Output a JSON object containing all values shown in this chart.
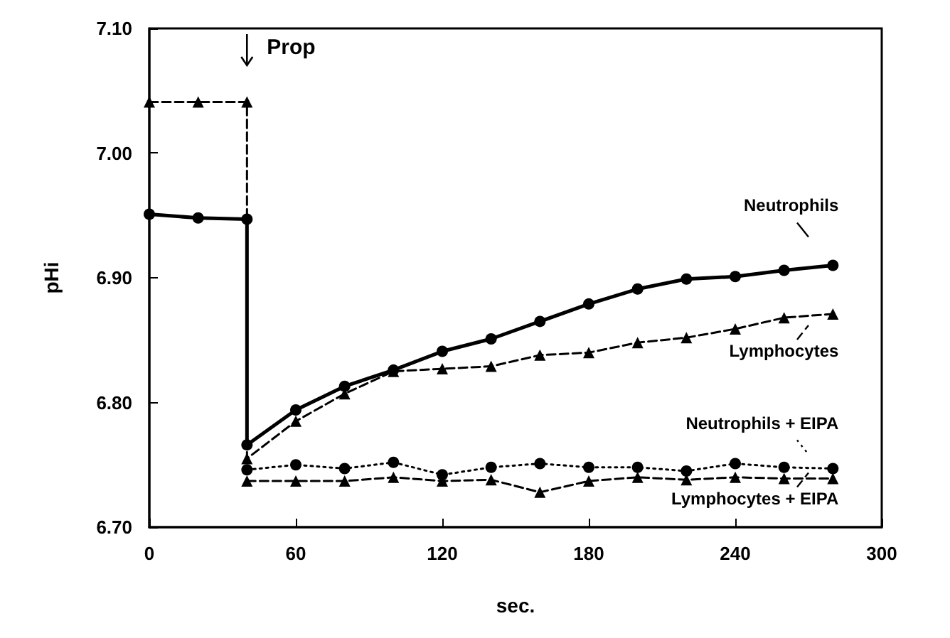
{
  "chart_data": {
    "type": "line",
    "xlabel": "sec.",
    "ylabel": "pHi",
    "xlim": [
      0,
      300
    ],
    "xticks": [
      0,
      60,
      120,
      180,
      240,
      300
    ],
    "ylim": [
      6.7,
      7.1
    ],
    "yticks": [
      {
        "value": 6.7,
        "label": "6.70"
      },
      {
        "value": 6.8,
        "label": "6.80"
      },
      {
        "value": 6.9,
        "label": "6.90"
      },
      {
        "value": 7.0,
        "label": "7.00"
      },
      {
        "value": 7.1,
        "label": "7.10"
      }
    ],
    "grid": false,
    "legend": "right",
    "annotations": [
      "Prop"
    ],
    "series": [
      {
        "name": "Neutrophils",
        "color": "#000000",
        "marker": "circle",
        "line_style": "solid",
        "x": [
          0,
          20,
          40,
          40,
          60,
          80,
          100,
          120,
          140,
          160,
          180,
          200,
          220,
          240,
          260,
          280
        ],
        "values": [
          6.951,
          6.948,
          6.947,
          6.766,
          6.794,
          6.813,
          6.826,
          6.841,
          6.851,
          6.865,
          6.879,
          6.891,
          6.899,
          6.901,
          6.906,
          6.91
        ]
      },
      {
        "name": "Lymphocytes",
        "color": "#000000",
        "marker": "triangle",
        "line_style": "dashed",
        "x": [
          0,
          20,
          40,
          40,
          60,
          80,
          100,
          120,
          140,
          160,
          180,
          200,
          220,
          240,
          260,
          280
        ],
        "values": [
          7.041,
          7.041,
          7.041,
          6.755,
          6.785,
          6.807,
          6.825,
          6.827,
          6.829,
          6.838,
          6.84,
          6.848,
          6.852,
          6.859,
          6.868,
          6.871
        ]
      },
      {
        "name": "Neutrophils + EIPA",
        "color": "#000000",
        "marker": "circle",
        "line_style": "dotted",
        "x": [
          40,
          60,
          80,
          100,
          120,
          140,
          160,
          180,
          200,
          220,
          240,
          260,
          280
        ],
        "values": [
          6.746,
          6.75,
          6.747,
          6.752,
          6.742,
          6.748,
          6.751,
          6.748,
          6.748,
          6.745,
          6.751,
          6.748,
          6.747
        ]
      },
      {
        "name": "Lymphocytes + EIPA",
        "color": "#000000",
        "marker": "triangle",
        "line_style": "dashed",
        "x": [
          40,
          60,
          80,
          100,
          120,
          140,
          160,
          180,
          200,
          220,
          240,
          260,
          280
        ],
        "values": [
          6.737,
          6.737,
          6.737,
          6.74,
          6.737,
          6.738,
          6.728,
          6.737,
          6.74,
          6.738,
          6.74,
          6.739,
          6.739
        ]
      }
    ]
  }
}
